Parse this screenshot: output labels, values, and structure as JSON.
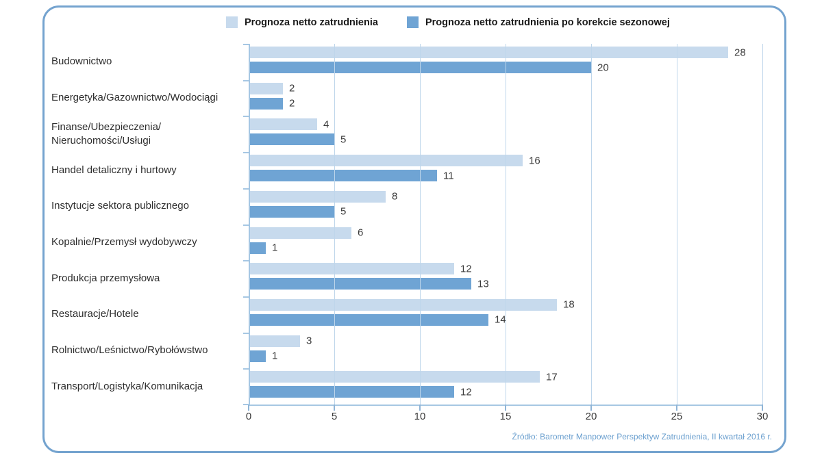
{
  "legend": {
    "items": [
      {
        "label": "Prognoza netto zatrudnienia"
      },
      {
        "label": "Prognoza netto zatrudnienia po korekcie sezonowej"
      }
    ]
  },
  "source_note": "Źródło: Barometr Manpower Perspektyw Zatrudnienia, II kwartał 2016 r.",
  "colors": {
    "frame_border": "#74a3cf",
    "bar_light": "#c7daed",
    "bar_dark": "#6fa4d4",
    "gridline": "#bed6eb",
    "axis_line": "#a6c7e3",
    "tick": "#8fb4d6",
    "source_text": "#6ca0cf"
  },
  "chart_data": {
    "type": "bar",
    "orientation": "horizontal",
    "title": "",
    "categories": [
      "Budownictwo",
      "Energetyka/Gazownictwo/Wodociągi",
      "Finanse/Ubezpieczenia/\nNieruchomości/Usługi",
      "Handel detaliczny i hurtowy",
      "Instytucje sektora publicznego",
      "Kopalnie/Przemysł wydobywczy",
      "Produkcja przemysłowa",
      "Restauracje/Hotele",
      "Rolnictwo/Leśnictwo/Rybołówstwo",
      "Transport/Logistyka/Komunikacja"
    ],
    "series": [
      {
        "name": "Prognoza netto zatrudnienia",
        "color": "#c7daed",
        "values": [
          28,
          2,
          4,
          16,
          8,
          6,
          12,
          18,
          3,
          17
        ]
      },
      {
        "name": "Prognoza netto zatrudnienia po korekcie sezonowej",
        "color": "#6fa4d4",
        "values": [
          20,
          2,
          5,
          11,
          5,
          1,
          13,
          14,
          1,
          12
        ]
      }
    ],
    "xlim": [
      0,
      30
    ],
    "xticks": [
      0,
      5,
      10,
      15,
      20,
      25,
      30
    ],
    "grid": true,
    "legend_position": "top"
  }
}
